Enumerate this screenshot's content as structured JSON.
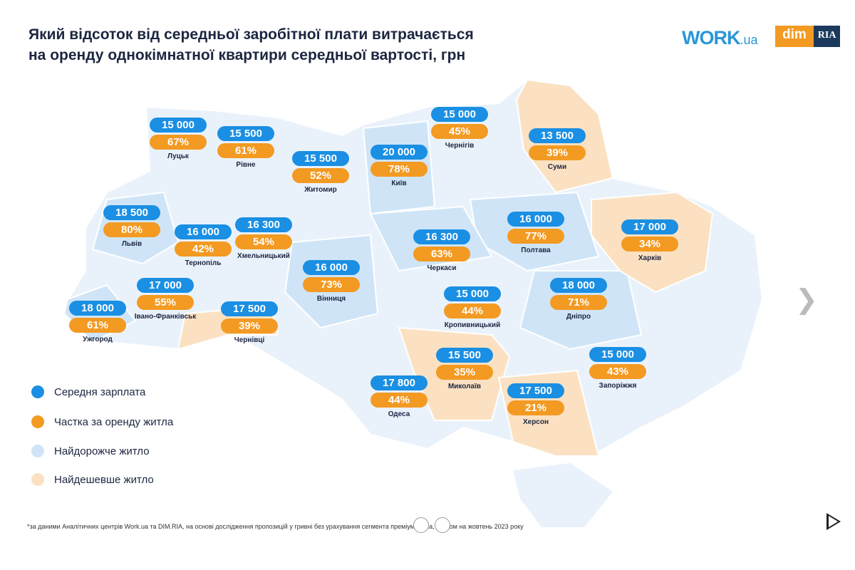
{
  "title_line1": "Який відсоток від середньої заробітної плати витрачається",
  "title_line2": "на оренду однокімнатної квартири середньої вартості, грн",
  "logos": {
    "work": "WORK",
    "work_suffix": ".ua",
    "dim": "dim",
    "ria": "RIA"
  },
  "colors": {
    "salary": "#1a8fe3",
    "share": "#f39a22",
    "expensive": "#cfe5f7",
    "cheap": "#fbe1c2",
    "other": "#e9f2fb"
  },
  "regions": [
    {
      "city": "Луцьк",
      "salary": "15 000",
      "share": "67%"
    },
    {
      "city": "Рівне",
      "salary": "15 500",
      "share": "61%"
    },
    {
      "city": "Житомир",
      "salary": "15 500",
      "share": "52%"
    },
    {
      "city": "Київ",
      "salary": "20 000",
      "share": "78%"
    },
    {
      "city": "Чернігів",
      "salary": "15 000",
      "share": "45%"
    },
    {
      "city": "Суми",
      "salary": "13 500",
      "share": "39%"
    },
    {
      "city": "Львів",
      "salary": "18 500",
      "share": "80%"
    },
    {
      "city": "Тернопіль",
      "salary": "16 000",
      "share": "42%"
    },
    {
      "city": "Хмельницький",
      "salary": "16 300",
      "share": "54%"
    },
    {
      "city": "Вінниця",
      "salary": "16 000",
      "share": "73%"
    },
    {
      "city": "Черкаси",
      "salary": "16 300",
      "share": "63%"
    },
    {
      "city": "Полтава",
      "salary": "16 000",
      "share": "77%"
    },
    {
      "city": "Харків",
      "salary": "17 000",
      "share": "34%"
    },
    {
      "city": "Дніпро",
      "salary": "18 000",
      "share": "71%"
    },
    {
      "city": "Кропивницький",
      "salary": "15 000",
      "share": "44%"
    },
    {
      "city": "Івано-Франківськ",
      "salary": "17 000",
      "share": "55%"
    },
    {
      "city": "Ужгород",
      "salary": "18 000",
      "share": "61%"
    },
    {
      "city": "Чернівці",
      "salary": "17 500",
      "share": "39%"
    },
    {
      "city": "Одеса",
      "salary": "17 800",
      "share": "44%"
    },
    {
      "city": "Миколаїв",
      "salary": "15 500",
      "share": "35%"
    },
    {
      "city": "Херсон",
      "salary": "17 500",
      "share": "21%"
    },
    {
      "city": "Запоріжжя",
      "salary": "15 000",
      "share": "43%"
    }
  ],
  "legend": [
    "Середня зарплата",
    "Частка за оренду житла",
    "Найдорожче житло",
    "Найдешевше житло"
  ],
  "footnote": "*за даними Аналітичних центрів Work.ua та DIM.RIA, на основі дослідження пропозицій у гривні без урахування сегмента преміумжитла, станом на жовтень 2023 року"
}
